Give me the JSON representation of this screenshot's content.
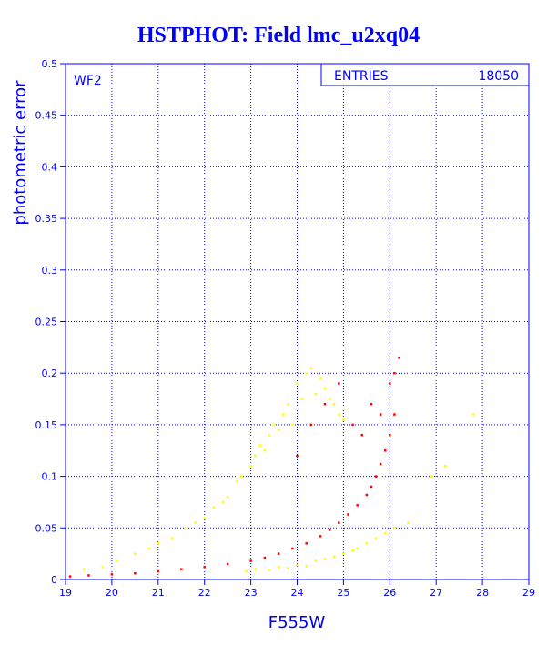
{
  "chart_data": {
    "type": "scatter",
    "title": "HSTPHOT: Field lmc_u2xq04",
    "xlabel": "F555W",
    "ylabel": "photometric error",
    "xlim": [
      19,
      29
    ],
    "ylim": [
      0,
      0.5
    ],
    "grid": true,
    "panel_label": "WF2",
    "stats_box": {
      "label": "ENTRIES",
      "value": "18050"
    },
    "x_ticks": [
      19,
      20,
      21,
      22,
      23,
      24,
      25,
      26,
      27,
      28,
      29
    ],
    "y_ticks": [
      0,
      0.05,
      0.1,
      0.15,
      0.2,
      0.25,
      0.3,
      0.35,
      0.4,
      0.45,
      0.5
    ],
    "x_tick_labels": [
      "19",
      "20",
      "21",
      "22",
      "23",
      "24",
      "25",
      "26",
      "27",
      "28",
      "29"
    ],
    "y_tick_labels": [
      "0",
      "0.05",
      "0.1",
      "0.15",
      "0.2",
      "0.25",
      "0.3",
      "0.35",
      "0.4",
      "0.45",
      "0.5"
    ],
    "series": [
      {
        "color": "#ffff00",
        "x": [
          19.4,
          19.8,
          20.1,
          20.5,
          20.8,
          21.0,
          21.3,
          21.6,
          21.8,
          22.0,
          22.2,
          22.4,
          22.5,
          22.7,
          22.8,
          23.0,
          23.1,
          23.2,
          23.3,
          23.4,
          23.5,
          23.6,
          23.7,
          23.8,
          23.9,
          24.0,
          24.1,
          24.2,
          24.3,
          24.4,
          24.5,
          24.6,
          24.7,
          24.8,
          24.9,
          25.0,
          22.9,
          23.1,
          23.4,
          23.6,
          23.8,
          24.0,
          24.2,
          24.4,
          24.6,
          24.8,
          25.0,
          25.2,
          25.3,
          25.5,
          25.7,
          25.9,
          26.1,
          26.4,
          26.9,
          27.2,
          27.8
        ],
        "y": [
          0.01,
          0.012,
          0.018,
          0.025,
          0.03,
          0.035,
          0.04,
          0.05,
          0.055,
          0.06,
          0.07,
          0.075,
          0.08,
          0.095,
          0.1,
          0.11,
          0.12,
          0.13,
          0.125,
          0.14,
          0.15,
          0.145,
          0.16,
          0.17,
          0.15,
          0.19,
          0.175,
          0.2,
          0.205,
          0.18,
          0.195,
          0.185,
          0.175,
          0.17,
          0.16,
          0.155,
          0.008,
          0.01,
          0.009,
          0.012,
          0.011,
          0.014,
          0.013,
          0.018,
          0.02,
          0.022,
          0.025,
          0.028,
          0.03,
          0.035,
          0.04,
          0.045,
          0.05,
          0.055,
          0.1,
          0.11,
          0.16
        ]
      },
      {
        "color": "#ff0000",
        "x": [
          19.1,
          19.5,
          20.0,
          20.5,
          21.0,
          21.5,
          22.0,
          22.5,
          23.0,
          23.3,
          23.6,
          23.9,
          24.2,
          24.5,
          24.7,
          24.9,
          25.1,
          25.3,
          25.5,
          25.6,
          25.7,
          25.8,
          25.9,
          26.0,
          26.1,
          26.2,
          24.0,
          24.3,
          24.6,
          24.9,
          25.2,
          25.4,
          25.6,
          25.8,
          26.0,
          26.1
        ],
        "y": [
          0.003,
          0.004,
          0.005,
          0.006,
          0.008,
          0.01,
          0.012,
          0.015,
          0.018,
          0.021,
          0.025,
          0.03,
          0.035,
          0.042,
          0.048,
          0.055,
          0.063,
          0.072,
          0.082,
          0.09,
          0.1,
          0.112,
          0.125,
          0.14,
          0.16,
          0.215,
          0.12,
          0.15,
          0.17,
          0.19,
          0.15,
          0.14,
          0.17,
          0.16,
          0.19,
          0.2
        ]
      }
    ]
  }
}
